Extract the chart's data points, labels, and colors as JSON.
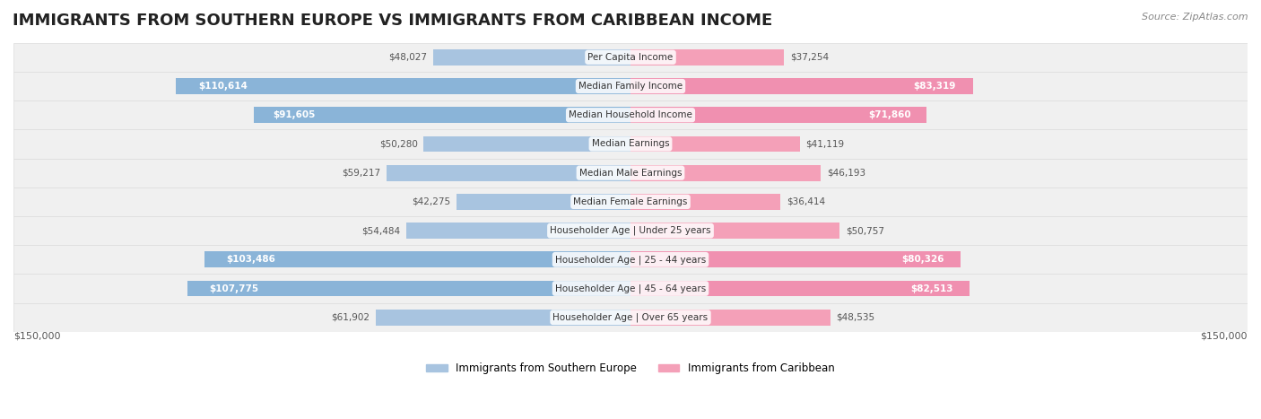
{
  "title": "IMMIGRANTS FROM SOUTHERN EUROPE VS IMMIGRANTS FROM CARIBBEAN INCOME",
  "source": "Source: ZipAtlas.com",
  "categories": [
    "Per Capita Income",
    "Median Family Income",
    "Median Household Income",
    "Median Earnings",
    "Median Male Earnings",
    "Median Female Earnings",
    "Householder Age | Under 25 years",
    "Householder Age | 25 - 44 years",
    "Householder Age | 45 - 64 years",
    "Householder Age | Over 65 years"
  ],
  "southern_europe": [
    48027,
    110614,
    91605,
    50280,
    59217,
    42275,
    54484,
    103486,
    107775,
    61902
  ],
  "caribbean": [
    37254,
    83319,
    71860,
    41119,
    46193,
    36414,
    50757,
    80326,
    82513,
    48535
  ],
  "max_val": 150000,
  "bar_color_blue": "#a8c4e0",
  "bar_color_pink": "#f4a0b8",
  "bar_color_blue_dark": "#6aaed6",
  "bar_color_pink_dark": "#f06090",
  "label_color_blue_dark": "#5590c0",
  "label_color_pink_dark": "#e05080",
  "bg_color": "#f0f0f0",
  "row_bg_color": "#f7f7f7",
  "title_fontsize": 13,
  "label_fontsize": 8,
  "legend_blue": "Immigrants from Southern Europe",
  "legend_pink": "Immigrants from Caribbean",
  "xlim": 150000,
  "bottom_label_left": "$150,000",
  "bottom_label_right": "$150,000"
}
